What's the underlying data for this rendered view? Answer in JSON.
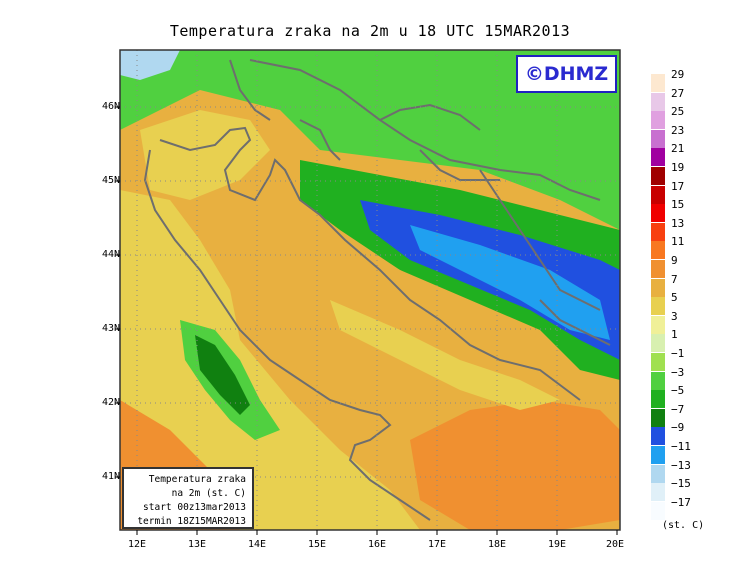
{
  "title": "Temperatura zraka na 2m u 18 UTC 15MAR2013",
  "logo": "©DHMZ",
  "info_box": {
    "line1": "Temperatura zraka",
    "line2": "na 2m (st. C)",
    "line3": "start 00z13mar2013",
    "line4": "termin 18Z15MAR2013"
  },
  "lat_labels": [
    "46N",
    "45N",
    "44N",
    "43N",
    "42N",
    "41N"
  ],
  "lon_labels": [
    "12E",
    "13E",
    "14E",
    "15E",
    "16E",
    "17E",
    "18E",
    "19E",
    "20E"
  ],
  "legend": {
    "labels": [
      "29",
      "27",
      "25",
      "23",
      "21",
      "19",
      "17",
      "15",
      "13",
      "11",
      "9",
      "7",
      "5",
      "3",
      "1",
      "−1",
      "−3",
      "−5",
      "−7",
      "−9",
      "−11",
      "−13",
      "−15",
      "−17"
    ],
    "colors": [
      "#fde8d0",
      "#e8c8e8",
      "#e0a0e0",
      "#c870d0",
      "#a000a0",
      "#a00000",
      "#c80000",
      "#f00000",
      "#f84010",
      "#f87820",
      "#f09030",
      "#e8b040",
      "#e8d050",
      "#f0f098",
      "#d8f0b0",
      "#a0e050",
      "#50d040",
      "#20b020",
      "#108010",
      "#2050e0",
      "#20a0f0",
      "#b0d8f0",
      "#e0f0f8",
      "#f8fcff"
    ],
    "unit": "(st. C)"
  },
  "colors": {
    "frame": "#333333",
    "coast": "#6e6e6e",
    "logo": "#2a2ad0"
  }
}
